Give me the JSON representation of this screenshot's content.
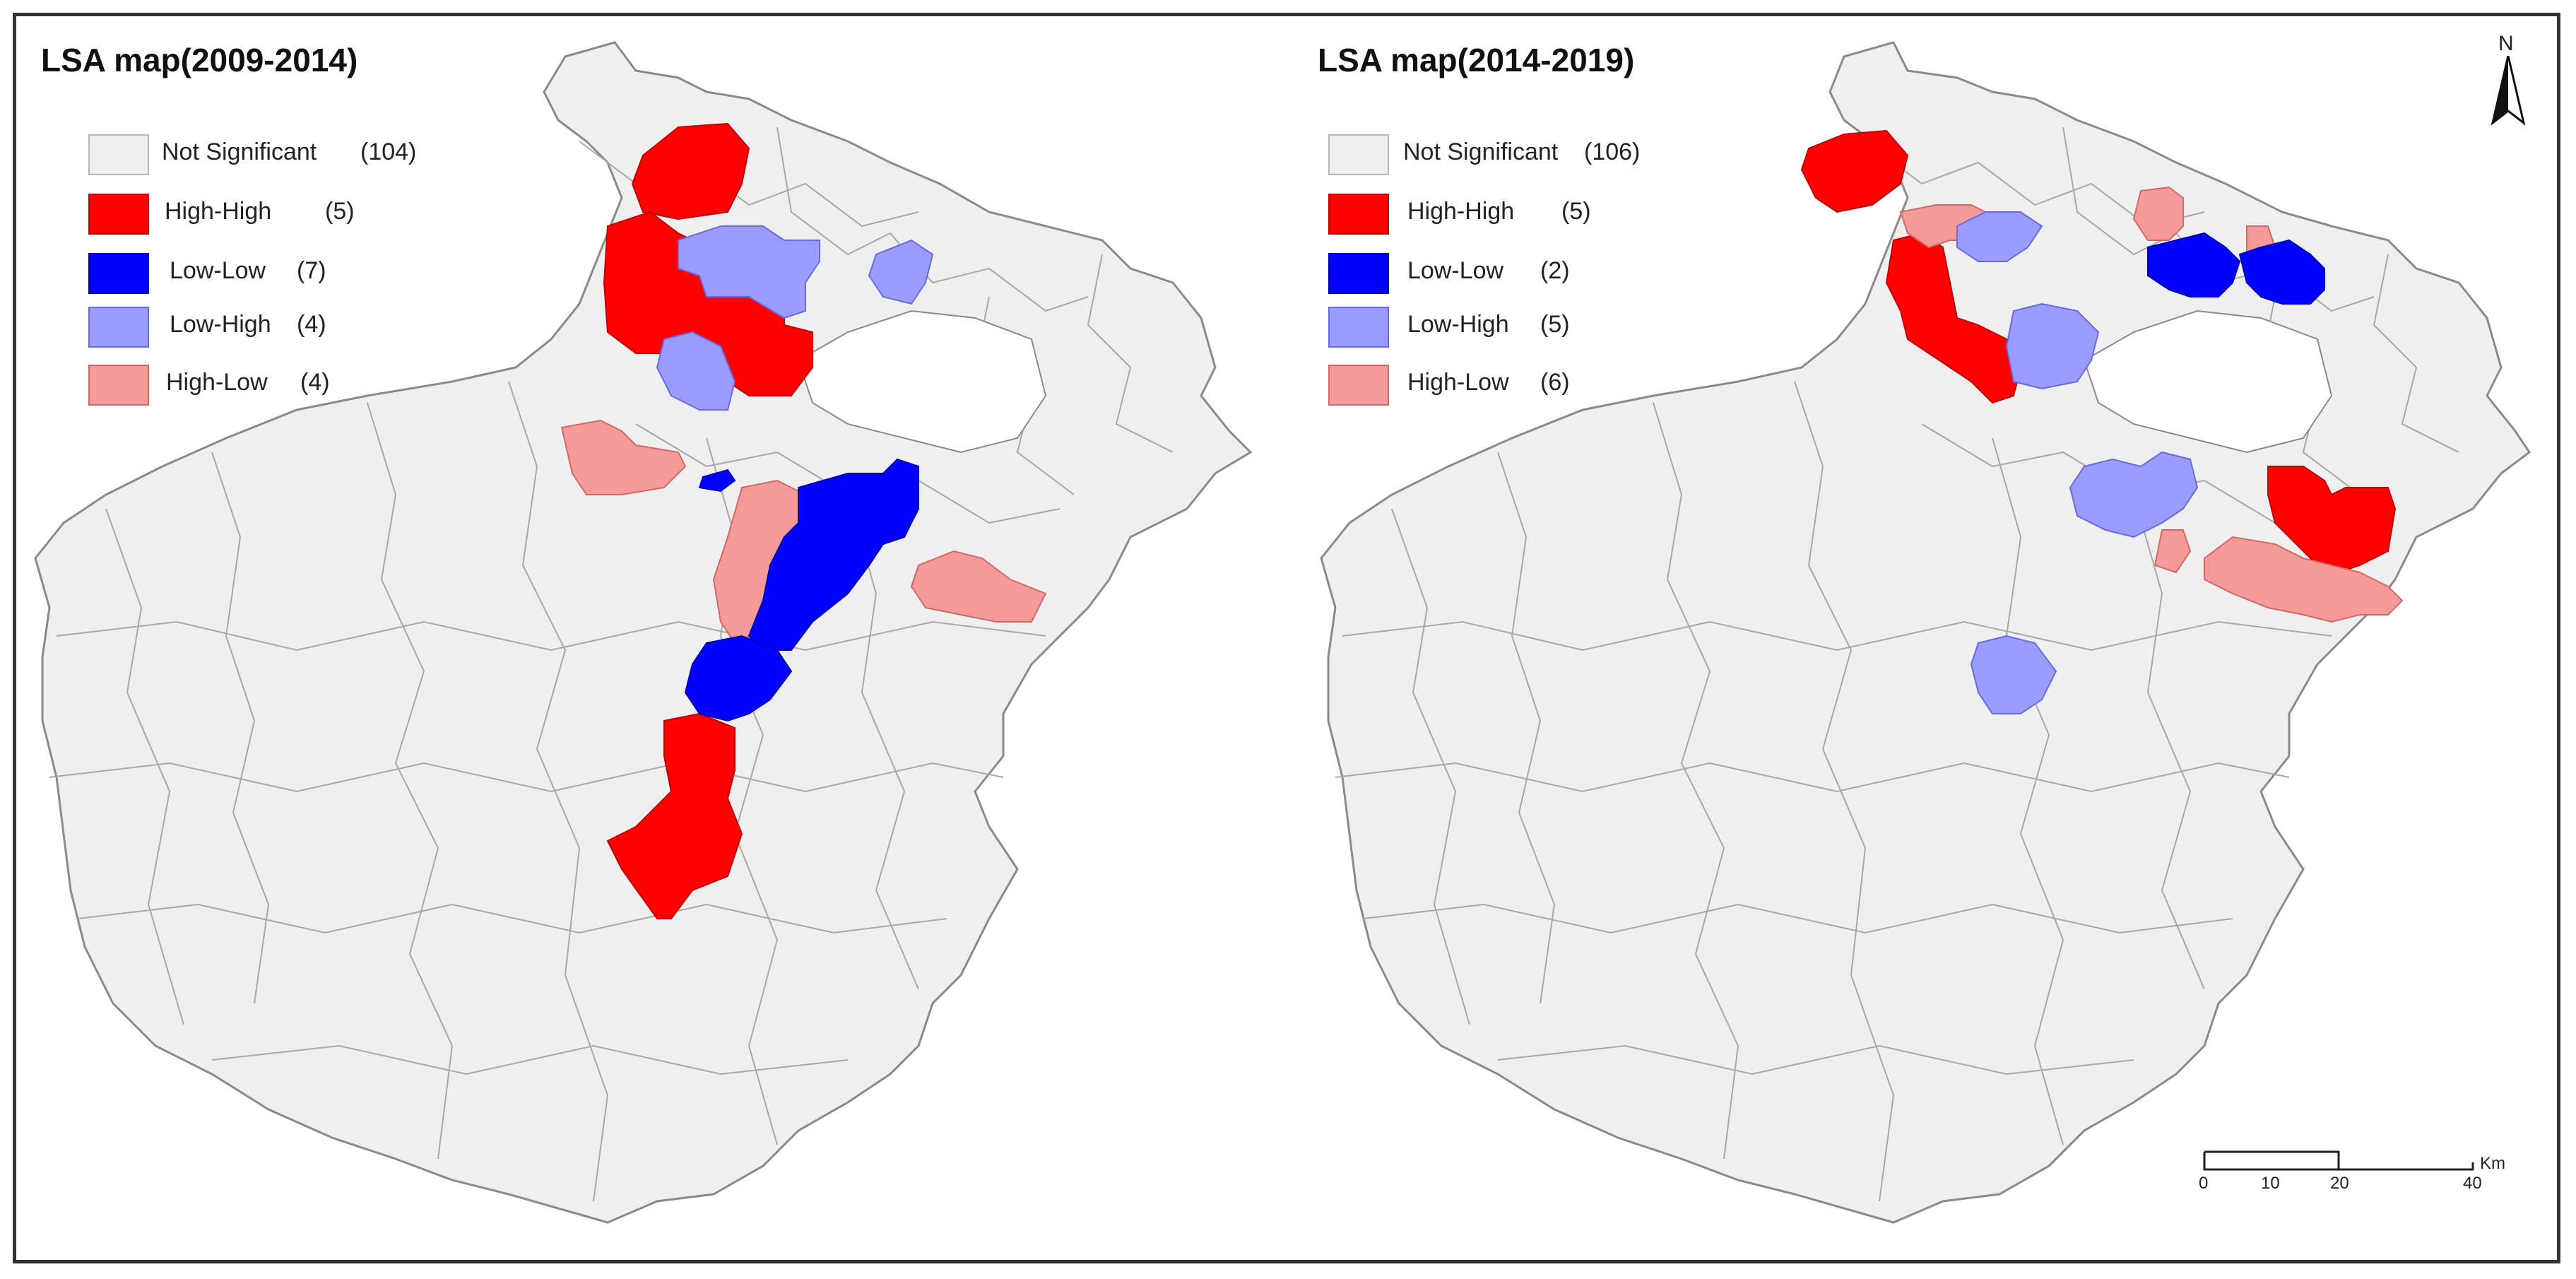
{
  "maps": [
    {
      "title": "LSA map(2009-2014)",
      "legend": [
        {
          "label": "Not Significant",
          "count": "(104)",
          "color": "#efefef"
        },
        {
          "label": "High-High",
          "count": "(5)",
          "color": "#ff0000"
        },
        {
          "label": "Low-Low",
          "count": "(7)",
          "color": "#0000ff"
        },
        {
          "label": "Low-High",
          "count": "(4)",
          "color": "#9a9cff"
        },
        {
          "label": "High-Low",
          "count": "(4)",
          "color": "#f49a9a"
        }
      ]
    },
    {
      "title": "LSA map(2014-2019)",
      "legend": [
        {
          "label": "Not Significant",
          "count": "(106)",
          "color": "#efefef"
        },
        {
          "label": "High-High",
          "count": "(5)",
          "color": "#ff0000"
        },
        {
          "label": "Low-Low",
          "count": "(2)",
          "color": "#0000ff"
        },
        {
          "label": "Low-High",
          "count": "(5)",
          "color": "#9a9cff"
        },
        {
          "label": "High-Low",
          "count": "(6)",
          "color": "#f49a9a"
        }
      ]
    }
  ],
  "north_arrow": {
    "label": "N"
  },
  "scale_bar": {
    "ticks": [
      "0",
      "10",
      "20",
      "40"
    ],
    "unit": "Km"
  }
}
